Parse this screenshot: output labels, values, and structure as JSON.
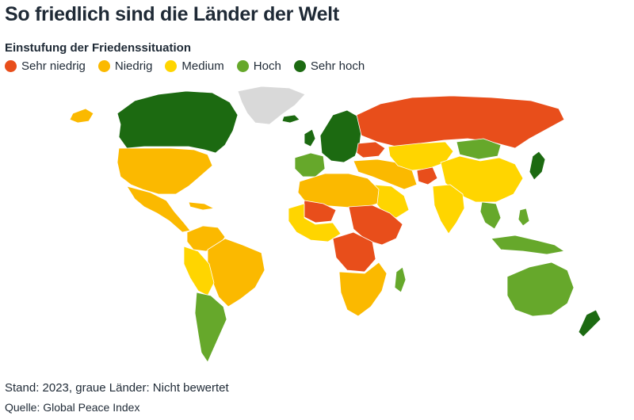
{
  "title": "So friedlich sind die Länder der Welt",
  "legend": {
    "title": "Einstufung der Friedenssituation",
    "items": [
      {
        "label": "Sehr niedrig",
        "color": "#e84e1b"
      },
      {
        "label": "Niedrig",
        "color": "#fbb900"
      },
      {
        "label": "Medium",
        "color": "#ffd500"
      },
      {
        "label": "Hoch",
        "color": "#66a82b"
      },
      {
        "label": "Sehr hoch",
        "color": "#1c6a11"
      }
    ],
    "not_rated_color": "#d9d9d9"
  },
  "map": {
    "regions": [
      {
        "name": "greenland",
        "category": "not_rated"
      },
      {
        "name": "canada",
        "category": "Sehr hoch"
      },
      {
        "name": "usa",
        "category": "Niedrig"
      },
      {
        "name": "mexico-central-america",
        "category": "Niedrig"
      },
      {
        "name": "colombia-venezuela",
        "category": "Niedrig"
      },
      {
        "name": "brazil",
        "category": "Niedrig"
      },
      {
        "name": "peru-bolivia",
        "category": "Medium"
      },
      {
        "name": "argentina-chile",
        "category": "Hoch"
      },
      {
        "name": "north-africa",
        "category": "Niedrig"
      },
      {
        "name": "west-africa",
        "category": "Medium"
      },
      {
        "name": "mali-niger",
        "category": "Sehr niedrig"
      },
      {
        "name": "sudan-ethiopia-somalia",
        "category": "Sehr niedrig"
      },
      {
        "name": "congo",
        "category": "Sehr niedrig"
      },
      {
        "name": "southern-africa",
        "category": "Niedrig"
      },
      {
        "name": "madagascar",
        "category": "Hoch"
      },
      {
        "name": "western-europe",
        "category": "Sehr hoch"
      },
      {
        "name": "iberia-france",
        "category": "Hoch"
      },
      {
        "name": "turkey-iran",
        "category": "Niedrig"
      },
      {
        "name": "ukraine",
        "category": "Sehr niedrig"
      },
      {
        "name": "russia",
        "category": "Sehr niedrig"
      },
      {
        "name": "kazakhstan-central-asia",
        "category": "Medium"
      },
      {
        "name": "mongolia",
        "category": "Hoch"
      },
      {
        "name": "china",
        "category": "Medium"
      },
      {
        "name": "india",
        "category": "Medium"
      },
      {
        "name": "afghanistan",
        "category": "Sehr niedrig"
      },
      {
        "name": "saudi-arabia",
        "category": "Medium"
      },
      {
        "name": "japan",
        "category": "Sehr hoch"
      },
      {
        "name": "southeast-asia",
        "category": "Hoch"
      },
      {
        "name": "australia",
        "category": "Hoch"
      },
      {
        "name": "new-zealand",
        "category": "Sehr hoch"
      }
    ]
  },
  "footer": {
    "stand": "Stand: 2023, graue Länder: Nicht bewertet",
    "source": "Quelle: Global Peace Index"
  }
}
